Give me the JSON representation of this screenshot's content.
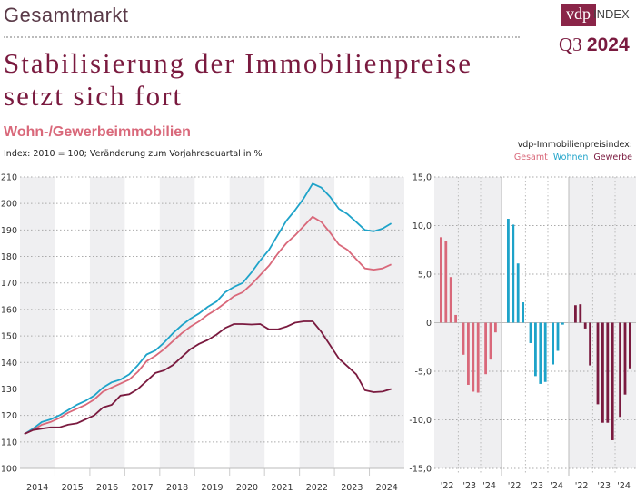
{
  "header": {
    "section": "Gesamtmarkt",
    "logo": "vdp",
    "logo_suffix": "INDEX",
    "quarter": "Q3",
    "year": "2024",
    "title_line1": "Stabilisierung der Immobilienpreise",
    "title_line2": "setzt sich fort"
  },
  "chart_header": {
    "subtitle": "Wohn-/Gewerbeimmobilien",
    "note": "Index: 2010 = 100; Veränderung zum Vorjahresquartal in %",
    "legend_title": "vdp-Immobilienpreisindex:",
    "legend": [
      "Gesamt",
      "Wohnen",
      "Gewerbe"
    ]
  },
  "colors": {
    "Gesamt": "#d9687a",
    "Wohnen": "#1ea3c9",
    "Gewerbe": "#7a1a3f",
    "title": "#7a1a3f",
    "band": "#efeff1"
  },
  "chart_data": [
    {
      "type": "line",
      "xlabel": "",
      "ylabel": "",
      "ylim": [
        100,
        210
      ],
      "yticks": [
        100,
        110,
        120,
        130,
        140,
        150,
        160,
        170,
        180,
        190,
        200,
        210
      ],
      "grid": true,
      "x_tick_labels": [
        "2014",
        "2015",
        "2016",
        "2017",
        "2018",
        "2019",
        "2020",
        "2021",
        "2022",
        "2023",
        "2024"
      ],
      "x_range": "Q1 2014 – Q3 2024 (quarterly)",
      "series": [
        {
          "name": "Wohnen",
          "values": [
            113,
            115,
            117.5,
            118.5,
            120,
            122,
            124,
            125.5,
            127.5,
            130.5,
            132.5,
            133.5,
            135.5,
            139,
            143,
            144.5,
            147.5,
            151,
            154,
            156.5,
            158.5,
            161,
            163,
            166.5,
            168.5,
            170,
            174,
            178.5,
            182.5,
            188,
            193.5,
            197.5,
            202,
            207.5,
            206,
            202.5,
            198,
            196,
            193,
            190,
            189.5,
            190.5,
            192.5
          ]
        },
        {
          "name": "Gesamt",
          "values": [
            113,
            114.5,
            116.5,
            117.5,
            119,
            121,
            122.5,
            124,
            126,
            129,
            130.5,
            132,
            133.5,
            136.5,
            140.5,
            142.5,
            145,
            148,
            151,
            153.5,
            155.5,
            158,
            160,
            162.5,
            165,
            166.5,
            169.5,
            173,
            176.5,
            181,
            185,
            188,
            191.5,
            195,
            193,
            189,
            184.5,
            182.5,
            179,
            175.5,
            175,
            175.5,
            177
          ]
        },
        {
          "name": "Gewerbe",
          "values": [
            113,
            114.5,
            115,
            115.5,
            115.5,
            116.5,
            117,
            118.5,
            120,
            123,
            124,
            127.5,
            128,
            130,
            133,
            136,
            137,
            139,
            142,
            145,
            147,
            148.5,
            150.5,
            153,
            154.5,
            154.5,
            154.3,
            154.5,
            152.5,
            152.5,
            153.5,
            155,
            155.5,
            155.5,
            151.5,
            146.5,
            141.5,
            138.5,
            135.5,
            129.5,
            128.8,
            129,
            130
          ]
        }
      ]
    },
    {
      "type": "bar",
      "ylim": [
        -15,
        15
      ],
      "yticks": [
        "-15,0",
        "-10,0",
        "-5,0",
        "0",
        "5,0",
        "10,0",
        "15,0"
      ],
      "grid": true,
      "x_tick_labels": [
        "'22",
        "'23",
        "'24"
      ],
      "x_range": "Q1 2022 – Q3 2024 (quarterly)",
      "series": [
        {
          "name": "Gesamt",
          "values": [
            8.8,
            8.4,
            4.7,
            0.8,
            -3.3,
            -6.4,
            -7.1,
            -7.2,
            -5.3,
            -3.8,
            -1.0
          ]
        },
        {
          "name": "Wohnen",
          "values": [
            10.7,
            10.1,
            6.1,
            2.1,
            -2.1,
            -5.5,
            -6.3,
            -6.1,
            -4.3,
            -2.9,
            -0.2
          ]
        },
        {
          "name": "Gewerbe",
          "values": [
            1.8,
            1.9,
            -0.6,
            -4.4,
            -8.4,
            -10.3,
            -10.3,
            -12.1,
            -9.7,
            -7.4,
            -4.7
          ]
        }
      ]
    }
  ]
}
